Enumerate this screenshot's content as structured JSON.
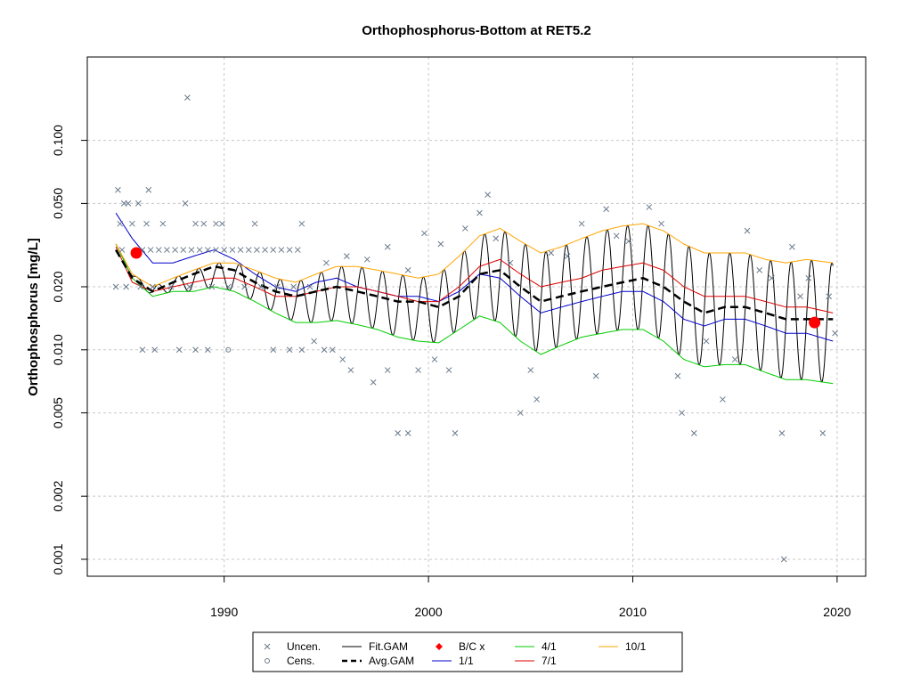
{
  "chart_data": {
    "type": "scatter",
    "title": "Orthophosphorus-Bottom at RET5.2",
    "ylabel": "Orthophosphorus [mg/L]",
    "xlabel": "",
    "y_scale": "log",
    "xlim": [
      1983.3,
      2021.4
    ],
    "ylim": [
      0.00083,
      0.25
    ],
    "x_ticks": [
      1990,
      2000,
      2010,
      2020
    ],
    "x_tick_labels": [
      "1990",
      "2000",
      "2010",
      "2020"
    ],
    "y_ticks": [
      0.001,
      0.002,
      0.005,
      0.01,
      0.02,
      0.05,
      0.1
    ],
    "y_tick_labels": [
      "0.001",
      "0.002",
      "0.005",
      "0.010",
      "0.020",
      "0.050",
      "0.100"
    ],
    "grid": true,
    "colors": {
      "points": "#6a7a8c",
      "fit": "#000000",
      "avg": "#000000",
      "jan": "#0000cc",
      "apr": "#00cc00",
      "jul": "#dd0000",
      "oct": "#ffa500",
      "bc": "#ff0000"
    },
    "legend": {
      "position": "bottom",
      "items": [
        {
          "label": "Uncen.",
          "symbol": "x",
          "color": "#6a7a8c"
        },
        {
          "label": "Cens.",
          "symbol": "o",
          "color": "#6a7a8c"
        },
        {
          "label": "Fit.GAM",
          "symbol": "line",
          "color": "#000000"
        },
        {
          "label": "Avg.GAM",
          "symbol": "dashed",
          "color": "#000000"
        },
        {
          "label": "B/C x",
          "symbol": "diamond",
          "color": "#ff0000"
        },
        {
          "label": "1/1",
          "symbol": "line",
          "color": "#0000cc"
        },
        {
          "label": "4/1",
          "symbol": "line",
          "color": "#00cc00"
        },
        {
          "label": "7/1",
          "symbol": "line",
          "color": "#dd0000"
        },
        {
          "label": "10/1",
          "symbol": "line",
          "color": "#ffa500"
        }
      ]
    },
    "series": [
      {
        "name": "Avg.GAM",
        "style": "dashed",
        "x": [
          1984.7,
          1985.5,
          1986.5,
          1987.5,
          1988.5,
          1989.5,
          1990.5,
          1991.5,
          1992.5,
          1993.5,
          1994.5,
          1995.5,
          1996.5,
          1997.5,
          1998.5,
          1999.5,
          2000.5,
          2001.5,
          2002.5,
          2003.5,
          2004.5,
          2005.5,
          2006.5,
          2007.5,
          2008.5,
          2009.5,
          2010.5,
          2011.5,
          2012.5,
          2013.5,
          2014.5,
          2015.5,
          2016.5,
          2017.5,
          2018.5,
          2019.8
        ],
        "y": [
          0.03,
          0.022,
          0.019,
          0.021,
          0.023,
          0.025,
          0.024,
          0.021,
          0.019,
          0.018,
          0.019,
          0.02,
          0.019,
          0.018,
          0.017,
          0.017,
          0.016,
          0.018,
          0.023,
          0.024,
          0.02,
          0.017,
          0.018,
          0.019,
          0.02,
          0.021,
          0.022,
          0.02,
          0.017,
          0.015,
          0.016,
          0.016,
          0.015,
          0.014,
          0.014,
          0.014
        ]
      },
      {
        "name": "1/1",
        "x": [
          1984.7,
          1985.5,
          1986.5,
          1987.5,
          1988.5,
          1989.5,
          1990.5,
          1991.5,
          1992.5,
          1993.5,
          1994.5,
          1995.5,
          1996.5,
          1997.5,
          1998.5,
          1999.5,
          2000.5,
          2001.5,
          2002.5,
          2003.5,
          2004.5,
          2005.5,
          2006.5,
          2007.5,
          2008.5,
          2009.5,
          2010.5,
          2011.5,
          2012.5,
          2013.5,
          2014.5,
          2015.5,
          2016.5,
          2017.5,
          2018.5,
          2019.8
        ],
        "y": [
          0.045,
          0.034,
          0.026,
          0.026,
          0.028,
          0.03,
          0.027,
          0.023,
          0.02,
          0.019,
          0.021,
          0.022,
          0.02,
          0.019,
          0.018,
          0.018,
          0.017,
          0.019,
          0.023,
          0.022,
          0.018,
          0.015,
          0.016,
          0.017,
          0.018,
          0.019,
          0.019,
          0.017,
          0.014,
          0.013,
          0.014,
          0.014,
          0.013,
          0.012,
          0.012,
          0.011
        ]
      },
      {
        "name": "4/1",
        "x": [
          1984.7,
          1985.5,
          1986.5,
          1987.5,
          1988.5,
          1989.5,
          1990.5,
          1991.5,
          1992.5,
          1993.5,
          1994.5,
          1995.5,
          1996.5,
          1997.5,
          1998.5,
          1999.5,
          2000.5,
          2001.5,
          2002.5,
          2003.5,
          2004.5,
          2005.5,
          2006.5,
          2007.5,
          2008.5,
          2009.5,
          2010.5,
          2011.5,
          2012.5,
          2013.5,
          2014.5,
          2015.5,
          2016.5,
          2017.5,
          2018.5,
          2019.8
        ],
        "y": [
          0.032,
          0.022,
          0.018,
          0.019,
          0.019,
          0.02,
          0.019,
          0.017,
          0.015,
          0.0135,
          0.0135,
          0.0138,
          0.0132,
          0.0125,
          0.0115,
          0.011,
          0.0108,
          0.0125,
          0.0145,
          0.0135,
          0.011,
          0.0095,
          0.0105,
          0.0115,
          0.012,
          0.0125,
          0.0125,
          0.011,
          0.009,
          0.0083,
          0.0085,
          0.0085,
          0.0078,
          0.0072,
          0.0072,
          0.0069
        ]
      },
      {
        "name": "7/1",
        "x": [
          1984.7,
          1985.5,
          1986.5,
          1987.5,
          1988.5,
          1989.5,
          1990.5,
          1991.5,
          1992.5,
          1993.5,
          1994.5,
          1995.5,
          1996.5,
          1997.5,
          1998.5,
          1999.5,
          2000.5,
          2001.5,
          2002.5,
          2003.5,
          2004.5,
          2005.5,
          2006.5,
          2007.5,
          2008.5,
          2009.5,
          2010.5,
          2011.5,
          2012.5,
          2013.5,
          2014.5,
          2015.5,
          2016.5,
          2017.5,
          2018.5,
          2019.8
        ],
        "y": [
          0.031,
          0.021,
          0.019,
          0.02,
          0.021,
          0.022,
          0.022,
          0.02,
          0.018,
          0.018,
          0.019,
          0.02,
          0.02,
          0.019,
          0.018,
          0.017,
          0.017,
          0.02,
          0.025,
          0.027,
          0.023,
          0.02,
          0.021,
          0.022,
          0.024,
          0.025,
          0.026,
          0.024,
          0.02,
          0.018,
          0.018,
          0.018,
          0.017,
          0.016,
          0.016,
          0.015
        ]
      },
      {
        "name": "10/1",
        "x": [
          1984.7,
          1985.5,
          1986.5,
          1987.5,
          1988.5,
          1989.5,
          1990.5,
          1991.5,
          1992.5,
          1993.5,
          1994.5,
          1995.5,
          1996.5,
          1997.5,
          1998.5,
          1999.5,
          2000.5,
          2001.5,
          2002.5,
          2003.5,
          2004.5,
          2005.5,
          2006.5,
          2007.5,
          2008.5,
          2009.5,
          2010.5,
          2011.5,
          2012.5,
          2013.5,
          2014.5,
          2015.5,
          2016.5,
          2017.5,
          2018.5,
          2019.8
        ],
        "y": [
          0.032,
          0.023,
          0.02,
          0.022,
          0.024,
          0.026,
          0.026,
          0.024,
          0.022,
          0.021,
          0.023,
          0.025,
          0.025,
          0.024,
          0.023,
          0.022,
          0.023,
          0.028,
          0.035,
          0.038,
          0.033,
          0.029,
          0.031,
          0.034,
          0.037,
          0.039,
          0.04,
          0.037,
          0.032,
          0.029,
          0.029,
          0.029,
          0.027,
          0.026,
          0.027,
          0.026
        ]
      }
    ],
    "fit_gam": {
      "name": "Fit.GAM",
      "period_years": 1,
      "trough_fraction_of_year": 0.25,
      "note_curves": "oscillates between 4/1 curve (trough) and 10/1 curve (peak)"
    },
    "bc_points": [
      {
        "x": 1985.7,
        "y": 0.029
      },
      {
        "x": 2018.9,
        "y": 0.0135
      }
    ],
    "uncensored_points": [
      {
        "x": 1984.8,
        "y": 0.058
      },
      {
        "x": 1985.1,
        "y": 0.05
      },
      {
        "x": 1985.3,
        "y": 0.05
      },
      {
        "x": 1985.5,
        "y": 0.04
      },
      {
        "x": 1984.9,
        "y": 0.04
      },
      {
        "x": 1985.0,
        "y": 0.03
      },
      {
        "x": 1984.7,
        "y": 0.02
      },
      {
        "x": 1985.2,
        "y": 0.02
      },
      {
        "x": 1985.8,
        "y": 0.05
      },
      {
        "x": 1986.3,
        "y": 0.058
      },
      {
        "x": 1986.2,
        "y": 0.04
      },
      {
        "x": 1987.0,
        "y": 0.04
      },
      {
        "x": 1988.2,
        "y": 0.16
      },
      {
        "x": 1988.1,
        "y": 0.05
      },
      {
        "x": 1988.6,
        "y": 0.04
      },
      {
        "x": 1989.0,
        "y": 0.04
      },
      {
        "x": 1989.6,
        "y": 0.04
      },
      {
        "x": 1989.9,
        "y": 0.04
      },
      {
        "x": 1991.5,
        "y": 0.04
      },
      {
        "x": 1993.8,
        "y": 0.04
      },
      {
        "x": 1986.0,
        "y": 0.03
      },
      {
        "x": 1986.4,
        "y": 0.03
      },
      {
        "x": 1986.8,
        "y": 0.03
      },
      {
        "x": 1987.2,
        "y": 0.03
      },
      {
        "x": 1987.6,
        "y": 0.03
      },
      {
        "x": 1988.0,
        "y": 0.03
      },
      {
        "x": 1988.4,
        "y": 0.03
      },
      {
        "x": 1988.8,
        "y": 0.03
      },
      {
        "x": 1989.2,
        "y": 0.03
      },
      {
        "x": 1989.6,
        "y": 0.03
      },
      {
        "x": 1990.0,
        "y": 0.03
      },
      {
        "x": 1990.4,
        "y": 0.03
      },
      {
        "x": 1990.8,
        "y": 0.03
      },
      {
        "x": 1991.2,
        "y": 0.03
      },
      {
        "x": 1991.6,
        "y": 0.03
      },
      {
        "x": 1992.0,
        "y": 0.03
      },
      {
        "x": 1992.4,
        "y": 0.03
      },
      {
        "x": 1992.8,
        "y": 0.03
      },
      {
        "x": 1993.2,
        "y": 0.03
      },
      {
        "x": 1993.6,
        "y": 0.03
      },
      {
        "x": 1985.9,
        "y": 0.02
      },
      {
        "x": 1986.5,
        "y": 0.02
      },
      {
        "x": 1987.4,
        "y": 0.02
      },
      {
        "x": 1988.3,
        "y": 0.02
      },
      {
        "x": 1989.4,
        "y": 0.02
      },
      {
        "x": 1990.2,
        "y": 0.02
      },
      {
        "x": 1991.0,
        "y": 0.02
      },
      {
        "x": 1991.8,
        "y": 0.02
      },
      {
        "x": 1992.6,
        "y": 0.02
      },
      {
        "x": 1993.4,
        "y": 0.02
      },
      {
        "x": 1994.2,
        "y": 0.02
      },
      {
        "x": 1986.0,
        "y": 0.01
      },
      {
        "x": 1986.6,
        "y": 0.01
      },
      {
        "x": 1987.8,
        "y": 0.01
      },
      {
        "x": 1988.6,
        "y": 0.01
      },
      {
        "x": 1989.2,
        "y": 0.01
      },
      {
        "x": 1992.4,
        "y": 0.01
      },
      {
        "x": 1993.2,
        "y": 0.01
      },
      {
        "x": 1993.8,
        "y": 0.01
      },
      {
        "x": 1994.4,
        "y": 0.011
      },
      {
        "x": 1994.9,
        "y": 0.01
      },
      {
        "x": 1995.3,
        "y": 0.01
      },
      {
        "x": 1995.8,
        "y": 0.009
      },
      {
        "x": 1996.2,
        "y": 0.008
      },
      {
        "x": 1997.3,
        "y": 0.007
      },
      {
        "x": 1998.0,
        "y": 0.008
      },
      {
        "x": 1998.5,
        "y": 0.004
      },
      {
        "x": 1999.0,
        "y": 0.004
      },
      {
        "x": 1999.5,
        "y": 0.008
      },
      {
        "x": 2000.3,
        "y": 0.009
      },
      {
        "x": 2001.0,
        "y": 0.008
      },
      {
        "x": 2001.3,
        "y": 0.004
      },
      {
        "x": 1995.0,
        "y": 0.026
      },
      {
        "x": 1996.0,
        "y": 0.028
      },
      {
        "x": 1997.0,
        "y": 0.027
      },
      {
        "x": 1998.0,
        "y": 0.031
      },
      {
        "x": 1999.0,
        "y": 0.024
      },
      {
        "x": 1999.8,
        "y": 0.036
      },
      {
        "x": 2000.6,
        "y": 0.032
      },
      {
        "x": 2001.8,
        "y": 0.038
      },
      {
        "x": 2002.5,
        "y": 0.045
      },
      {
        "x": 2002.9,
        "y": 0.055
      },
      {
        "x": 2003.3,
        "y": 0.034
      },
      {
        "x": 2004.0,
        "y": 0.026
      },
      {
        "x": 2004.5,
        "y": 0.005
      },
      {
        "x": 2005.0,
        "y": 0.008
      },
      {
        "x": 2005.3,
        "y": 0.0058
      },
      {
        "x": 2006.0,
        "y": 0.029
      },
      {
        "x": 2006.8,
        "y": 0.028
      },
      {
        "x": 2007.5,
        "y": 0.04
      },
      {
        "x": 2008.2,
        "y": 0.0075
      },
      {
        "x": 2008.7,
        "y": 0.047
      },
      {
        "x": 2009.2,
        "y": 0.035
      },
      {
        "x": 2009.8,
        "y": 0.033
      },
      {
        "x": 2010.8,
        "y": 0.048
      },
      {
        "x": 2011.4,
        "y": 0.04
      },
      {
        "x": 2012.2,
        "y": 0.0075
      },
      {
        "x": 2012.4,
        "y": 0.005
      },
      {
        "x": 2013.0,
        "y": 0.004
      },
      {
        "x": 2013.6,
        "y": 0.011
      },
      {
        "x": 2014.4,
        "y": 0.0058
      },
      {
        "x": 2015.0,
        "y": 0.009
      },
      {
        "x": 2015.6,
        "y": 0.037
      },
      {
        "x": 2016.2,
        "y": 0.024
      },
      {
        "x": 2016.8,
        "y": 0.022
      },
      {
        "x": 2017.3,
        "y": 0.004
      },
      {
        "x": 2017.4,
        "y": 0.001
      },
      {
        "x": 2017.8,
        "y": 0.031
      },
      {
        "x": 2018.2,
        "y": 0.018
      },
      {
        "x": 2018.6,
        "y": 0.022
      },
      {
        "x": 2019.3,
        "y": 0.004
      },
      {
        "x": 2019.6,
        "y": 0.018
      },
      {
        "x": 2019.9,
        "y": 0.012
      }
    ],
    "censored_points": [
      {
        "x": 1990.2,
        "y": 0.01
      }
    ]
  }
}
